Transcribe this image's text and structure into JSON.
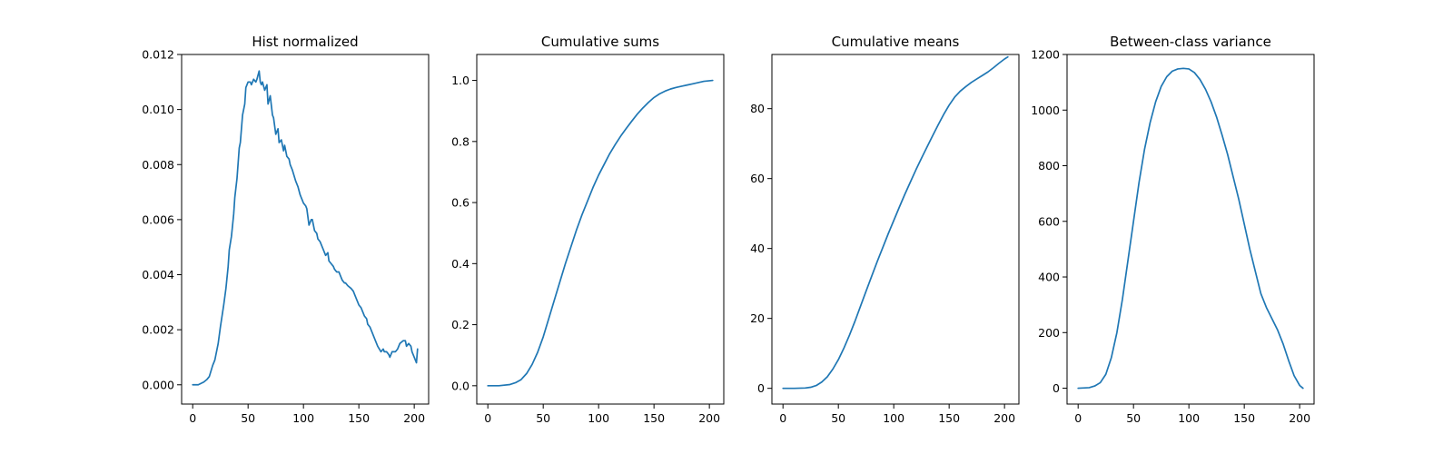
{
  "figure": {
    "background": "#ffffff"
  },
  "chart_data": [
    {
      "type": "line",
      "title": "Hist normalized",
      "xlabel": "",
      "ylabel": "",
      "xlim": [
        -10,
        213
      ],
      "ylim": [
        -0.0007,
        0.012
      ],
      "xticks": [
        0,
        50,
        100,
        150,
        200
      ],
      "xtick_labels": [
        "0",
        "50",
        "100",
        "150",
        "200"
      ],
      "yticks": [
        0.0,
        0.002,
        0.004,
        0.006,
        0.008,
        0.01,
        0.012
      ],
      "ytick_labels": [
        "0.000",
        "0.002",
        "0.004",
        "0.006",
        "0.008",
        "0.010",
        "0.012"
      ],
      "grid": false,
      "series": [
        {
          "color": "#1f77b4",
          "x": [
            0,
            5,
            10,
            13,
            15,
            18,
            20,
            23,
            25,
            28,
            30,
            32,
            33,
            35,
            37,
            38,
            40,
            42,
            43,
            45,
            47,
            48,
            50,
            52,
            53,
            55,
            57,
            58,
            60,
            61,
            62,
            63,
            65,
            67,
            68,
            70,
            72,
            73,
            75,
            77,
            78,
            80,
            82,
            83,
            85,
            87,
            88,
            90,
            93,
            95,
            97,
            100,
            102,
            103,
            105,
            107,
            108,
            110,
            112,
            113,
            115,
            117,
            118,
            120,
            122,
            123,
            125,
            127,
            128,
            130,
            132,
            133,
            135,
            137,
            138,
            140,
            143,
            145,
            147,
            148,
            150,
            152,
            153,
            155,
            157,
            158,
            160,
            163,
            165,
            167,
            170,
            172,
            173,
            175,
            177,
            178,
            180,
            183,
            185,
            187,
            190,
            192,
            193,
            195,
            197,
            198,
            200,
            202,
            203
          ],
          "y": [
            0.0,
            0.0,
            0.0001,
            0.0002,
            0.0003,
            0.0007,
            0.0009,
            0.0015,
            0.0021,
            0.0029,
            0.0035,
            0.0043,
            0.0049,
            0.0054,
            0.0062,
            0.0068,
            0.0075,
            0.0086,
            0.0088,
            0.0098,
            0.0102,
            0.0108,
            0.011,
            0.011,
            0.0109,
            0.0111,
            0.011,
            0.0111,
            0.0114,
            0.011,
            0.0109,
            0.011,
            0.0107,
            0.0109,
            0.0102,
            0.0105,
            0.0098,
            0.0097,
            0.0091,
            0.0093,
            0.0088,
            0.0089,
            0.0085,
            0.0087,
            0.0083,
            0.0082,
            0.008,
            0.0078,
            0.0074,
            0.0072,
            0.0069,
            0.0066,
            0.0065,
            0.0064,
            0.0058,
            0.006,
            0.006,
            0.0056,
            0.0055,
            0.0053,
            0.0052,
            0.005,
            0.0049,
            0.0047,
            0.0048,
            0.0045,
            0.0044,
            0.0043,
            0.0042,
            0.0041,
            0.0041,
            0.004,
            0.0038,
            0.0037,
            0.0037,
            0.0036,
            0.0035,
            0.0034,
            0.0032,
            0.0031,
            0.0029,
            0.0028,
            0.0027,
            0.0025,
            0.0024,
            0.0022,
            0.0021,
            0.0018,
            0.0016,
            0.0014,
            0.0012,
            0.0013,
            0.0012,
            0.0012,
            0.0011,
            0.001,
            0.0012,
            0.0012,
            0.0013,
            0.0015,
            0.0016,
            0.0016,
            0.0014,
            0.0015,
            0.0014,
            0.0012,
            0.001,
            0.0008,
            0.0013
          ]
        }
      ]
    },
    {
      "type": "line",
      "title": "Cumulative sums",
      "xlabel": "",
      "ylabel": "",
      "xlim": [
        -10,
        213
      ],
      "ylim": [
        -0.06,
        1.085
      ],
      "xticks": [
        0,
        50,
        100,
        150,
        200
      ],
      "xtick_labels": [
        "0",
        "50",
        "100",
        "150",
        "200"
      ],
      "yticks": [
        0.0,
        0.2,
        0.4,
        0.6,
        0.8,
        1.0
      ],
      "ytick_labels": [
        "0.0",
        "0.2",
        "0.4",
        "0.6",
        "0.8",
        "1.0"
      ],
      "grid": false,
      "series": [
        {
          "color": "#1f77b4",
          "x": [
            0,
            10,
            20,
            25,
            30,
            35,
            40,
            45,
            50,
            55,
            60,
            65,
            70,
            75,
            80,
            85,
            90,
            95,
            100,
            105,
            110,
            115,
            120,
            125,
            130,
            135,
            140,
            145,
            150,
            155,
            160,
            165,
            170,
            175,
            180,
            185,
            190,
            195,
            200,
            203
          ],
          "y": [
            0.0,
            0.0,
            0.004,
            0.01,
            0.02,
            0.04,
            0.07,
            0.11,
            0.16,
            0.22,
            0.28,
            0.34,
            0.4,
            0.455,
            0.51,
            0.56,
            0.605,
            0.65,
            0.69,
            0.725,
            0.76,
            0.79,
            0.818,
            0.843,
            0.867,
            0.89,
            0.91,
            0.928,
            0.944,
            0.956,
            0.965,
            0.972,
            0.977,
            0.981,
            0.985,
            0.989,
            0.993,
            0.997,
            0.999,
            1.0
          ]
        }
      ]
    },
    {
      "type": "line",
      "title": "Cumulative means",
      "xlabel": "",
      "ylabel": "",
      "xlim": [
        -10,
        213
      ],
      "ylim": [
        -4.5,
        95.5
      ],
      "xticks": [
        0,
        50,
        100,
        150,
        200
      ],
      "xtick_labels": [
        "0",
        "50",
        "100",
        "150",
        "200"
      ],
      "yticks": [
        0,
        20,
        40,
        60,
        80
      ],
      "ytick_labels": [
        "0",
        "20",
        "40",
        "60",
        "80"
      ],
      "grid": false,
      "series": [
        {
          "color": "#1f77b4",
          "x": [
            0,
            10,
            20,
            25,
            30,
            35,
            40,
            45,
            50,
            55,
            60,
            65,
            70,
            75,
            80,
            85,
            90,
            95,
            100,
            105,
            110,
            115,
            120,
            125,
            130,
            135,
            140,
            145,
            150,
            155,
            160,
            165,
            170,
            175,
            180,
            185,
            190,
            195,
            200,
            203
          ],
          "y": [
            0.0,
            0.0,
            0.1,
            0.3,
            0.8,
            1.8,
            3.3,
            5.5,
            8.2,
            11.5,
            15.2,
            19.2,
            23.5,
            27.8,
            32.0,
            36.2,
            40.2,
            44.2,
            48.0,
            51.8,
            55.5,
            59.0,
            62.5,
            65.8,
            69.0,
            72.2,
            75.3,
            78.3,
            81.0,
            83.3,
            85.0,
            86.3,
            87.5,
            88.5,
            89.5,
            90.5,
            91.7,
            93.0,
            94.2,
            94.8
          ]
        }
      ]
    },
    {
      "type": "line",
      "title": "Between-class variance",
      "xlabel": "",
      "ylabel": "",
      "xlim": [
        -10,
        213
      ],
      "ylim": [
        -57,
        1200
      ],
      "xticks": [
        0,
        50,
        100,
        150,
        200
      ],
      "xtick_labels": [
        "0",
        "50",
        "100",
        "150",
        "200"
      ],
      "yticks": [
        0,
        200,
        400,
        600,
        800,
        1000,
        1200
      ],
      "ytick_labels": [
        "0",
        "200",
        "400",
        "600",
        "800",
        "1000",
        "1200"
      ],
      "grid": false,
      "series": [
        {
          "color": "#1f77b4",
          "x": [
            0,
            10,
            15,
            20,
            25,
            30,
            35,
            40,
            45,
            50,
            55,
            60,
            65,
            70,
            75,
            80,
            85,
            90,
            95,
            100,
            105,
            110,
            115,
            120,
            125,
            130,
            135,
            140,
            145,
            150,
            155,
            160,
            165,
            170,
            175,
            180,
            185,
            190,
            195,
            200,
            203
          ],
          "y": [
            0,
            2,
            8,
            20,
            50,
            110,
            200,
            320,
            460,
            600,
            740,
            860,
            955,
            1030,
            1085,
            1120,
            1140,
            1148,
            1150,
            1148,
            1135,
            1110,
            1075,
            1030,
            975,
            910,
            840,
            760,
            680,
            590,
            500,
            420,
            340,
            290,
            250,
            210,
            160,
            100,
            45,
            10,
            0
          ]
        }
      ]
    }
  ]
}
